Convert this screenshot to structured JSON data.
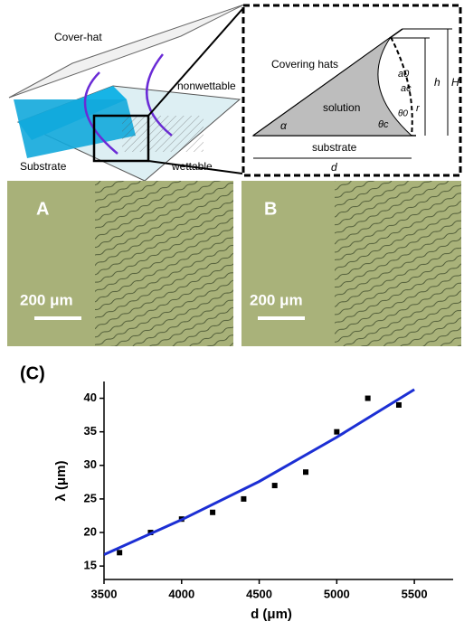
{
  "schematic": {
    "cover_hat": "Cover-hat",
    "nonwettable": "nonwettable",
    "substrate": "Substrate",
    "wettable": "wettable",
    "inset": {
      "covering_hats": "Covering hats",
      "solution": "solution",
      "substrate": "substrate",
      "d": "d",
      "h": "h",
      "H": "H",
      "alpha": "α",
      "theta_c": "θc",
      "theta_0": "θ0",
      "r": "r",
      "a0": "a0",
      "ac": "ac"
    }
  },
  "micrographs": [
    {
      "label": "A",
      "scale": "200 μm"
    },
    {
      "label": "B",
      "scale": "200 μm"
    }
  ],
  "chart_data": {
    "type": "scatter",
    "title": "(C)",
    "x_label": "d (μm)",
    "y_label": "λ (μm)",
    "xlim": [
      3500,
      5750
    ],
    "ylim": [
      13,
      42.5
    ],
    "xticks": [
      3500,
      4000,
      4500,
      5000,
      5500
    ],
    "yticks": [
      15,
      20,
      25,
      30,
      35,
      40
    ],
    "series": [
      {
        "x": [
          3600,
          3800,
          4000,
          4200,
          4400,
          4600,
          4800,
          5000,
          5200,
          5400
        ],
        "values": [
          17,
          20,
          22,
          23,
          25,
          27,
          29,
          35,
          40,
          39
        ],
        "color": "#000000"
      },
      {
        "x": [
          3500,
          4000,
          4500,
          5000,
          5500
        ],
        "values": [
          16.7,
          21.9,
          27.6,
          34.2,
          41.3
        ],
        "color": "#1c2fd4",
        "mode": "line"
      }
    ]
  }
}
